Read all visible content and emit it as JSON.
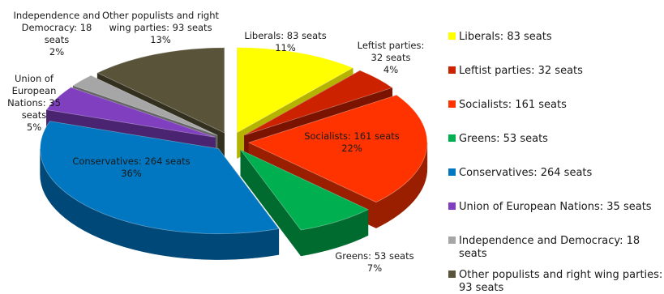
{
  "chart_data": {
    "type": "pie",
    "style": "3d-exploded",
    "legend_position": "right",
    "title": "",
    "slices": [
      {
        "label": "Liberals: 83 seats",
        "value": 83,
        "percent": "11%",
        "color": "#FFFF00",
        "side": "#B3B300"
      },
      {
        "label": "Leftist parties: 32 seats",
        "value": 32,
        "percent": "4%",
        "color": "#CC2200",
        "side": "#7A1400"
      },
      {
        "label": "Socialists: 161 seats",
        "value": 161,
        "percent": "22%",
        "color": "#FF3300",
        "side": "#991F00"
      },
      {
        "label": "Greens: 53 seats",
        "value": 53,
        "percent": "7%",
        "color": "#00B050",
        "side": "#006B2F"
      },
      {
        "label": "Conservatives: 264 seats",
        "value": 264,
        "percent": "36%",
        "color": "#0077C0",
        "side": "#004877"
      },
      {
        "label": "Union of European Nations: 35 seats",
        "value": 35,
        "percent": "5%",
        "color": "#7F3FBF",
        "side": "#4A2470"
      },
      {
        "label": "Independence and Democracy: 18 seats",
        "value": 18,
        "percent": "2%",
        "color": "#A6A6A6",
        "side": "#666666"
      },
      {
        "label": "Other populists and right wing parties: 93 seats",
        "value": 93,
        "percent": "13%",
        "color": "#595339",
        "side": "#33301F"
      }
    ]
  }
}
